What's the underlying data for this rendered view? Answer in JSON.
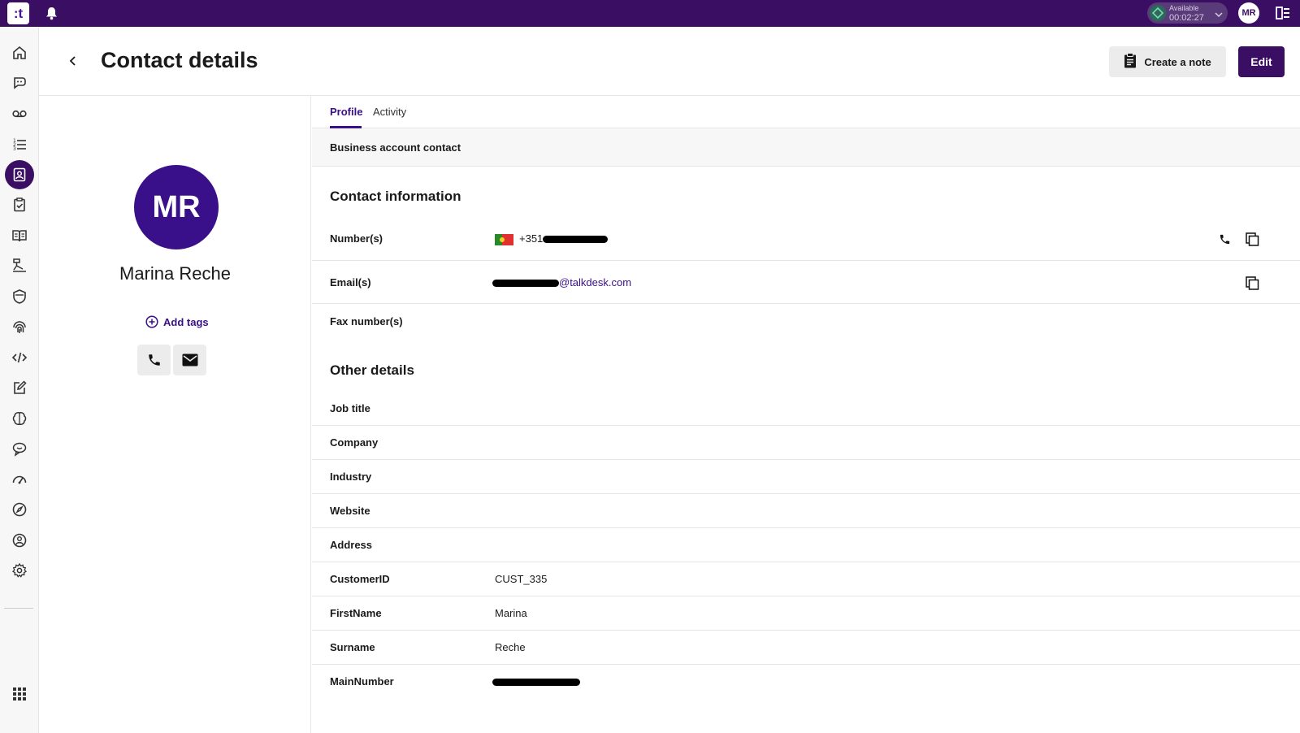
{
  "topbar": {
    "logo_text": ":t",
    "status_label": "Available",
    "status_timer": "00:02:27",
    "user_initials": "MR"
  },
  "sidebar": {
    "items": [
      {
        "icon": "home-icon"
      },
      {
        "icon": "conversations-icon"
      },
      {
        "icon": "voicemail-icon"
      },
      {
        "icon": "call-list-icon"
      },
      {
        "icon": "contacts-icon",
        "active": true
      },
      {
        "icon": "tasks-icon"
      },
      {
        "icon": "knowledge-icon"
      },
      {
        "icon": "flows-icon"
      },
      {
        "icon": "security-icon"
      },
      {
        "icon": "identity-icon"
      },
      {
        "icon": "developer-icon"
      },
      {
        "icon": "edit-icon"
      },
      {
        "icon": "ai-icon"
      },
      {
        "icon": "feedback-icon"
      },
      {
        "icon": "performance-icon"
      },
      {
        "icon": "explore-icon"
      },
      {
        "icon": "user-profile-icon"
      },
      {
        "icon": "settings-icon"
      }
    ],
    "bottom_icon": "apps-grid-icon"
  },
  "header": {
    "title": "Contact details",
    "create_note_label": "Create a note",
    "edit_label": "Edit"
  },
  "contact": {
    "initials": "MR",
    "name": "Marina Reche",
    "add_tags_label": "Add tags"
  },
  "tabs": [
    {
      "label": "Profile",
      "active": true
    },
    {
      "label": "Activity",
      "active": false
    }
  ],
  "banner": "Business account contact",
  "contact_information": {
    "title": "Contact information",
    "numbers_label": "Number(s)",
    "number_prefix": "+351",
    "emails_label": "Email(s)",
    "email_domain": "@talkdesk.com",
    "fax_label": "Fax number(s)"
  },
  "other_details": {
    "title": "Other details",
    "rows": [
      {
        "label": "Job title",
        "value": ""
      },
      {
        "label": "Company",
        "value": ""
      },
      {
        "label": "Industry",
        "value": ""
      },
      {
        "label": "Website",
        "value": ""
      },
      {
        "label": "Address",
        "value": ""
      },
      {
        "label": "CustomerID",
        "value": "CUST_335"
      },
      {
        "label": "FirstName",
        "value": "Marina"
      },
      {
        "label": "Surname",
        "value": "Reche"
      },
      {
        "label": "MainNumber",
        "value": ""
      }
    ]
  },
  "colors": {
    "brand": "#3a0f63",
    "accent": "#3a0f8a"
  }
}
